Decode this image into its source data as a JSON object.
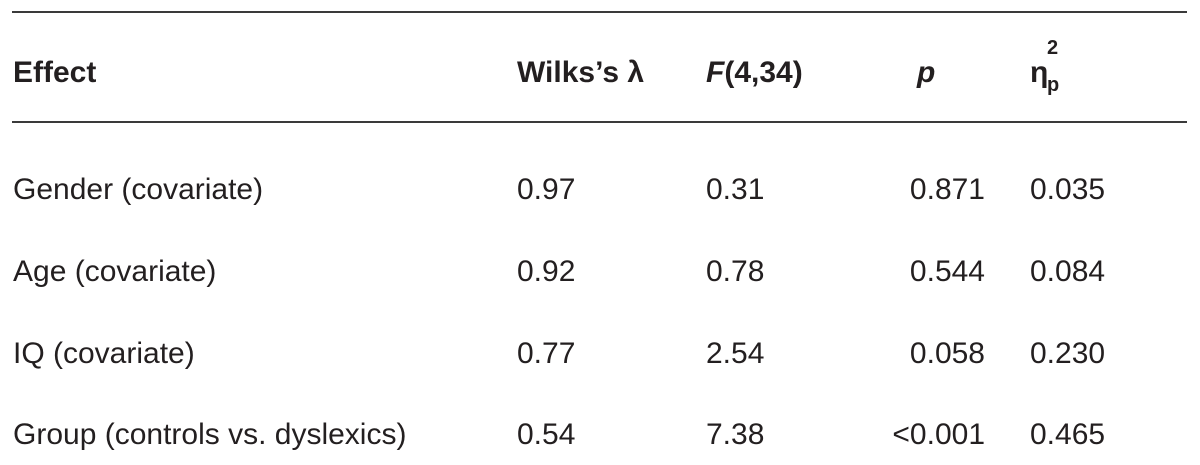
{
  "table": {
    "headers": {
      "effect": "Effect",
      "wilks": "Wilks’s λ",
      "f_symbol": "F",
      "f_df": "(4,34)",
      "p": "p",
      "eta_symbol": "η",
      "eta_sup": "2",
      "eta_sub": "p"
    },
    "rows": [
      {
        "effect": "Gender (covariate)",
        "wilks": "0.97",
        "f": "0.31",
        "p": "0.871",
        "eta": "0.035"
      },
      {
        "effect": "Age (covariate)",
        "wilks": "0.92",
        "f": "0.78",
        "p": "0.544",
        "eta": "0.084"
      },
      {
        "effect": "IQ (covariate)",
        "wilks": "0.77",
        "f": "2.54",
        "p": "0.058",
        "eta": "0.230"
      },
      {
        "effect": "Group (controls vs. dyslexics)",
        "wilks": "0.54",
        "f": "7.38",
        "p": "<0.001",
        "eta": "0.465"
      }
    ]
  }
}
